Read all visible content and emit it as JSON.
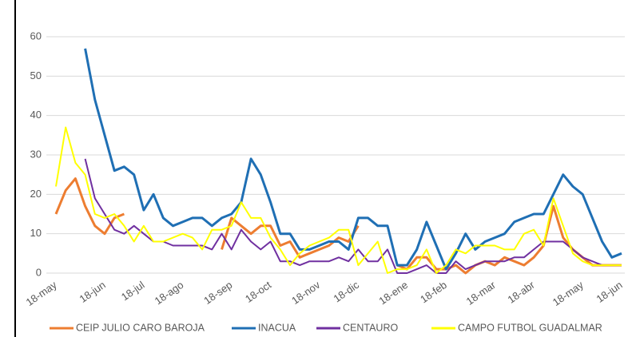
{
  "chart_data": {
    "type": "line",
    "categories": [
      "18-may",
      null,
      null,
      null,
      null,
      "18-jun",
      null,
      null,
      null,
      "18-jul",
      null,
      null,
      null,
      "18-ago",
      null,
      null,
      null,
      null,
      "18-sep",
      null,
      null,
      null,
      "18-oct",
      null,
      null,
      null,
      null,
      "18-nov",
      null,
      null,
      null,
      "18-dic",
      null,
      null,
      null,
      null,
      "18-ene",
      null,
      null,
      null,
      "18-feb",
      null,
      null,
      null,
      null,
      "18-mar",
      null,
      null,
      null,
      "18-abr",
      null,
      null,
      null,
      null,
      "18-may",
      null,
      null,
      null,
      "18-jun"
    ],
    "series": [
      {
        "name": "CEIP JULIO CARO BAROJA",
        "color": "#ed7d31",
        "values": [
          15,
          21,
          24,
          17,
          12,
          10,
          14,
          15,
          null,
          null,
          null,
          null,
          null,
          null,
          null,
          null,
          null,
          6,
          14,
          12,
          10,
          12,
          12,
          7,
          8,
          4,
          5,
          6,
          7,
          9,
          8,
          12,
          null,
          null,
          null,
          2,
          1,
          4,
          4,
          1,
          1,
          2,
          0,
          2,
          3,
          2,
          4,
          3,
          2,
          4,
          7,
          17,
          9,
          6,
          4,
          2,
          2,
          2,
          2
        ]
      },
      {
        "name": "INACUA",
        "color": "#1f6fb4",
        "values": [
          null,
          null,
          null,
          57,
          44,
          35,
          26,
          27,
          25,
          16,
          20,
          14,
          12,
          13,
          14,
          14,
          12,
          14,
          15,
          18,
          29,
          25,
          18,
          10,
          10,
          6,
          6,
          7,
          8,
          8,
          6,
          14,
          14,
          12,
          12,
          2,
          2,
          6,
          13,
          7,
          1,
          5,
          10,
          6,
          8,
          9,
          10,
          13,
          14,
          15,
          15,
          20,
          25,
          22,
          20,
          14,
          8,
          4,
          5
        ]
      },
      {
        "name": "CENTAURO",
        "color": "#7030a0",
        "values": [
          null,
          null,
          null,
          29,
          19,
          15,
          11,
          10,
          12,
          10,
          8,
          8,
          7,
          7,
          7,
          7,
          6,
          10,
          6,
          11,
          8,
          6,
          8,
          3,
          3,
          2,
          3,
          3,
          3,
          4,
          3,
          6,
          3,
          3,
          6,
          0,
          0,
          1,
          2,
          0,
          0,
          3,
          1,
          2,
          3,
          3,
          3,
          4,
          4,
          6,
          8,
          8,
          8,
          6,
          4,
          3,
          2,
          2,
          2
        ]
      },
      {
        "name": "CAMPO FUTBOL GUADALMAR",
        "color": "#ffff00",
        "values": [
          22,
          37,
          28,
          25,
          15,
          14,
          15,
          12,
          8,
          12,
          8,
          8,
          9,
          10,
          9,
          6,
          11,
          11,
          12,
          18,
          14,
          14,
          9,
          6,
          2,
          5,
          7,
          8,
          9,
          11,
          11,
          2,
          5,
          8,
          0,
          1,
          1,
          2,
          6,
          0,
          2,
          6,
          5,
          7,
          7,
          7,
          6,
          6,
          10,
          11,
          7,
          19,
          12,
          5,
          3,
          2,
          2,
          2,
          2
        ]
      }
    ],
    "ylim": [
      0,
      60
    ],
    "yticks": [
      0,
      10,
      20,
      30,
      40,
      50,
      60
    ],
    "grid": true
  }
}
